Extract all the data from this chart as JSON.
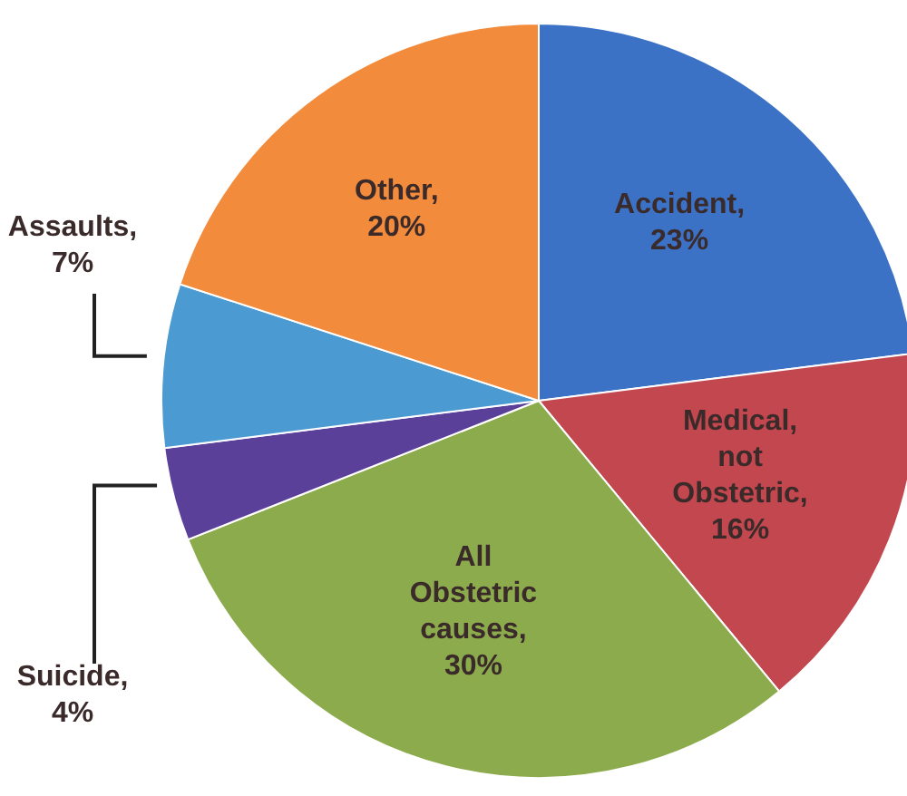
{
  "chart_data": {
    "type": "pie",
    "categories": [
      "Accident",
      "Medical, not Obstetric",
      "All Obstetric causes",
      "Suicide",
      "Assaults",
      "Other"
    ],
    "values": [
      23,
      16,
      30,
      4,
      7,
      20
    ],
    "value_labels": [
      ", 23%",
      ", 16%",
      ", 30%",
      ", 4%",
      ", 7%",
      ", 20%"
    ],
    "colors": [
      "#3b72c6",
      "#c2474f",
      "#8cab4c",
      "#5b409a",
      "#4b9ad2",
      "#f28b3c"
    ]
  }
}
